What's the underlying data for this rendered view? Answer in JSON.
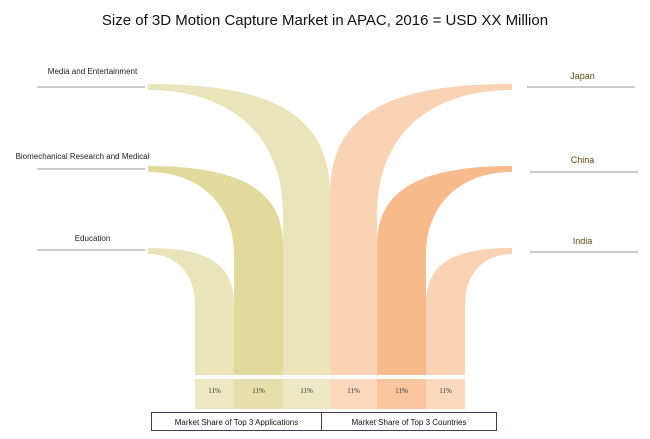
{
  "chart_data": {
    "type": "sankey",
    "title": "Size of 3D Motion Capture Market in APAC, 2016 = USD XX Million",
    "applications": [
      {
        "label": "Media and Entertainment",
        "value": "11%",
        "color": "#e9e4b9"
      },
      {
        "label": "Biomechanical Research and Medical",
        "value": "11%",
        "color": "#e1da9c"
      },
      {
        "label": "Education",
        "value": "11%",
        "color": "#e9e4b9"
      }
    ],
    "countries": [
      {
        "label": "Japan",
        "value": "11%",
        "color": "#fad2b4"
      },
      {
        "label": "China",
        "value": "11%",
        "color": "#f8bb8e"
      },
      {
        "label": "India",
        "value": "11%",
        "color": "#fad2b4"
      }
    ],
    "legend": {
      "left": "Market Share of Top 3 Applications",
      "right": "Market Share of Top 3 Countries"
    }
  }
}
